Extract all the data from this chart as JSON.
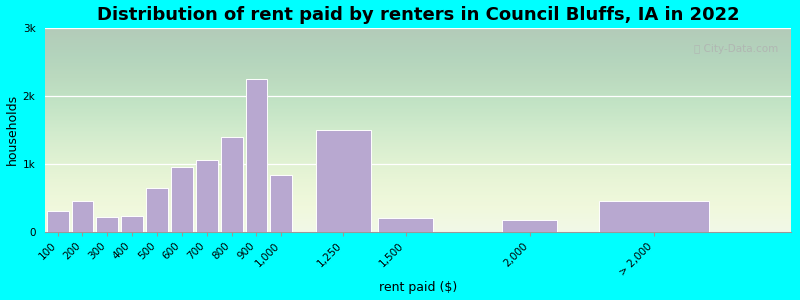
{
  "title": "Distribution of rent paid by renters in Council Bluffs, IA in 2022",
  "xlabel": "rent paid ($)",
  "ylabel": "households",
  "categories": [
    "100",
    "200",
    "300",
    "400",
    "500",
    "600",
    "700",
    "800",
    "900",
    "1,000",
    "1,250",
    "1,500",
    "2,000",
    "> 2,000"
  ],
  "x_positions": [
    100,
    200,
    300,
    400,
    500,
    600,
    700,
    800,
    900,
    1000,
    1250,
    1500,
    2000,
    2500
  ],
  "bar_widths": [
    100,
    100,
    100,
    100,
    100,
    100,
    100,
    100,
    100,
    100,
    250,
    250,
    250,
    500
  ],
  "values": [
    300,
    450,
    220,
    230,
    650,
    950,
    1050,
    1400,
    2250,
    830,
    1500,
    200,
    180,
    450
  ],
  "bar_color": "#b8a8d0",
  "bar_edge_color": "#ffffff",
  "ylim": [
    0,
    3000
  ],
  "yticks": [
    0,
    1000,
    2000,
    3000
  ],
  "ytick_labels": [
    "0",
    "1k",
    "2k",
    "3k"
  ],
  "xlim": [
    50,
    3050
  ],
  "bg_color": "#eef7e8",
  "outer_bg": "#00ffff",
  "title_fontsize": 13,
  "axis_label_fontsize": 9,
  "tick_fontsize": 7.5
}
